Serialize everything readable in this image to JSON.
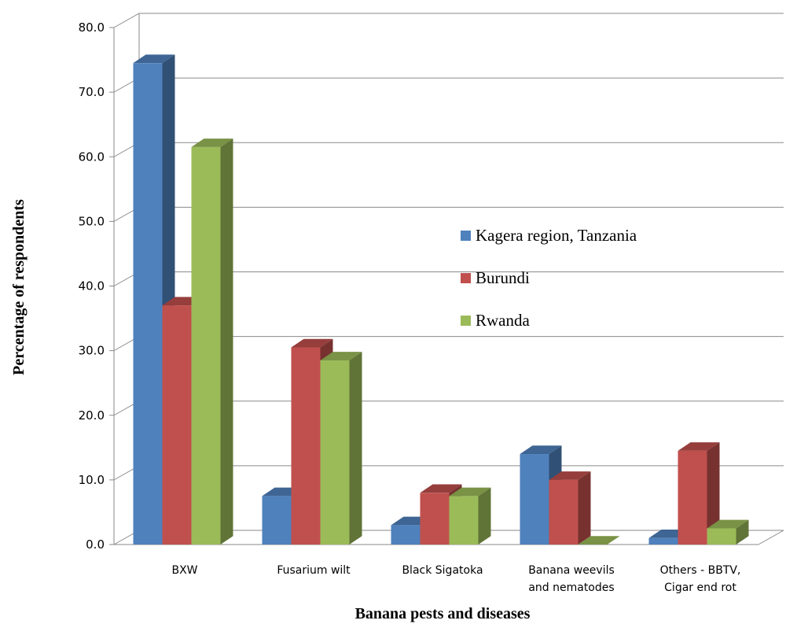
{
  "chart_data": {
    "type": "bar",
    "title": "",
    "xlabel": "Banana pests and diseases",
    "ylabel": "Percentage of respondents",
    "ylim": [
      0,
      80
    ],
    "yticks": [
      "0.0",
      "10.0",
      "20.0",
      "30.0",
      "40.0",
      "50.0",
      "60.0",
      "70.0",
      "80.0"
    ],
    "grid": true,
    "legend_position": "center-right",
    "categories": [
      [
        "BXW"
      ],
      [
        "Fusarium wilt"
      ],
      [
        "Black Sigatoka"
      ],
      [
        "Banana weevils",
        "and nematodes"
      ],
      [
        "Others - BBTV,",
        "Cigar end rot"
      ]
    ],
    "series": [
      {
        "name": "Kagera region, Tanzania",
        "color": "#4f81bd",
        "values": [
          74.5,
          7.5,
          3.0,
          14.0,
          1.0
        ]
      },
      {
        "name": "Burundi",
        "color": "#c0504d",
        "values": [
          37.0,
          30.5,
          8.0,
          10.0,
          14.5
        ]
      },
      {
        "name": "Rwanda",
        "color": "#9bbb59",
        "values": [
          61.5,
          28.5,
          7.5,
          0.0,
          2.5
        ]
      }
    ]
  }
}
